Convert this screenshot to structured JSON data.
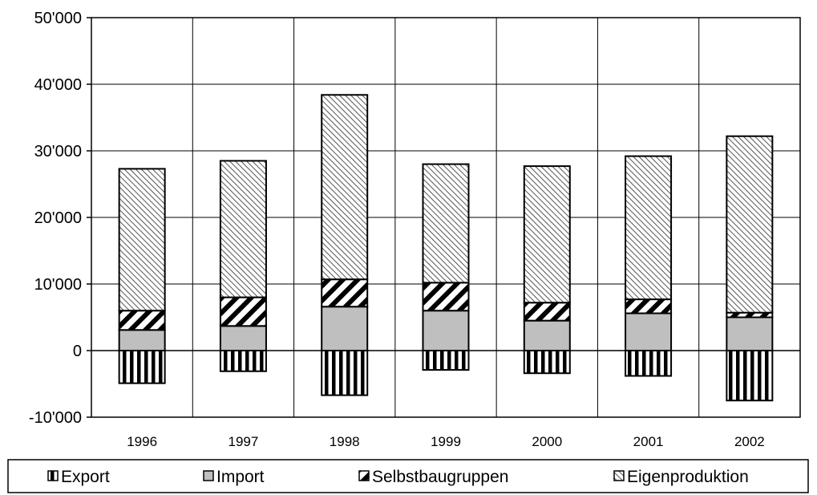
{
  "chart_data": {
    "type": "bar",
    "stacked": true,
    "categories": [
      "1996",
      "1997",
      "1998",
      "1999",
      "2000",
      "2001",
      "2002"
    ],
    "series": [
      {
        "name": "Export",
        "values": [
          -4900,
          -3100,
          -6700,
          -2900,
          -3400,
          -3800,
          -7500
        ],
        "pattern": "vertical-stripes"
      },
      {
        "name": "Import",
        "values": [
          3100,
          3700,
          6600,
          6000,
          4500,
          5600,
          5000
        ],
        "pattern": "gray-fill"
      },
      {
        "name": "Selbstbaugruppen",
        "values": [
          2900,
          4300,
          4100,
          4200,
          2700,
          2100,
          700
        ],
        "pattern": "heavy-diagonal"
      },
      {
        "name": "Eigenproduktion",
        "values": [
          21300,
          20500,
          27700,
          17800,
          20500,
          21500,
          26500
        ],
        "pattern": "fine-diagonal"
      }
    ],
    "title": "",
    "xlabel": "",
    "ylabel": "",
    "ylim": [
      -10000,
      50000
    ],
    "yticks": [
      {
        "value": -10000,
        "label": "-10'000"
      },
      {
        "value": 0,
        "label": "0"
      },
      {
        "value": 10000,
        "label": "10'000"
      },
      {
        "value": 20000,
        "label": "20'000"
      },
      {
        "value": 30000,
        "label": "30'000"
      },
      {
        "value": 40000,
        "label": "40'000"
      },
      {
        "value": 50000,
        "label": "50'000"
      }
    ],
    "grid": true,
    "legend_position": "bottom",
    "colors": {
      "gray": "#bfbfbf",
      "stroke": "#000000",
      "background": "#ffffff"
    }
  }
}
